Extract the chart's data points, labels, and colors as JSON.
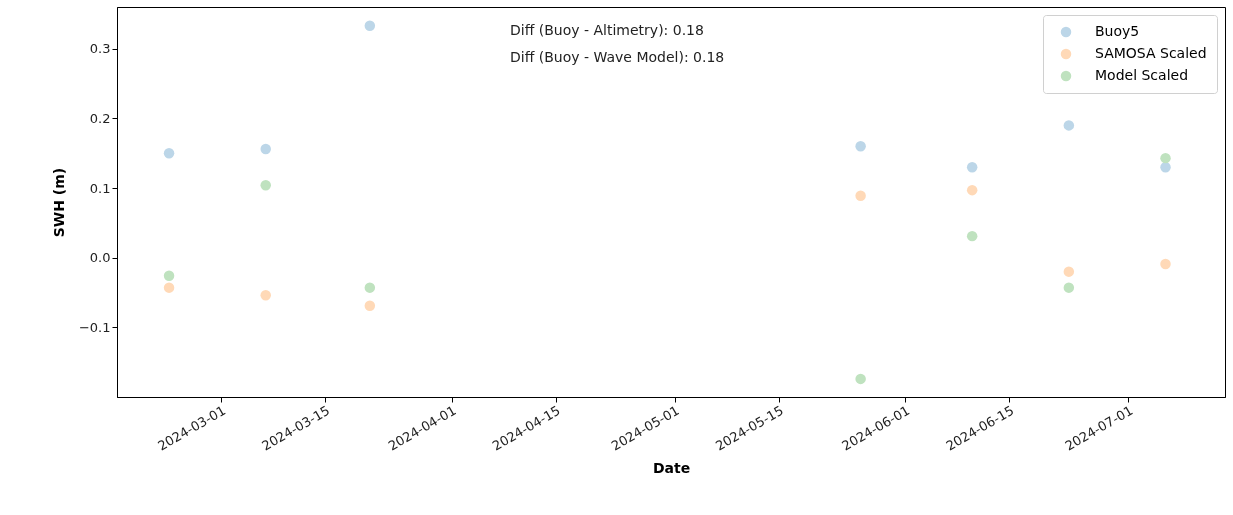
{
  "chart_data": {
    "type": "scatter",
    "xlabel": "Date",
    "ylabel": "SWH (m)",
    "x": [
      "2024-02-23",
      "2024-03-07",
      "2024-03-21",
      "2024-05-26",
      "2024-06-10",
      "2024-06-23",
      "2024-07-06"
    ],
    "series": [
      {
        "name": "Buoy5",
        "color": "#bcd6e8",
        "values": [
          0.15,
          0.156,
          0.333,
          0.16,
          0.13,
          0.19,
          0.13
        ]
      },
      {
        "name": "SAMOSA Scaled",
        "color": "#ffd9b7",
        "values": [
          -0.043,
          -0.054,
          -0.069,
          0.089,
          0.097,
          -0.02,
          -0.009
        ]
      },
      {
        "name": "Model Scaled",
        "color": "#bfe2bf",
        "values": [
          -0.026,
          0.104,
          -0.043,
          -0.174,
          0.031,
          -0.043,
          0.143
        ]
      }
    ],
    "xlim": [
      "2024-02-16",
      "2024-07-14"
    ],
    "xticks": [
      "2024-03-01",
      "2024-03-15",
      "2024-04-01",
      "2024-04-15",
      "2024-05-01",
      "2024-05-15",
      "2024-06-01",
      "2024-06-15",
      "2024-07-01"
    ],
    "ylim": [
      -0.2,
      0.36
    ],
    "yticks": [
      {
        "value": -0.1,
        "label": "−0.1"
      },
      {
        "value": 0,
        "label": "0.0"
      },
      0.1,
      0.2,
      0.3
    ],
    "annotations": [
      "Diff (Buoy - Altimetry): 0.18",
      "Diff (Buoy - Wave Model): 0.18"
    ],
    "legend": "top right",
    "grid": false,
    "marker": "circle"
  }
}
